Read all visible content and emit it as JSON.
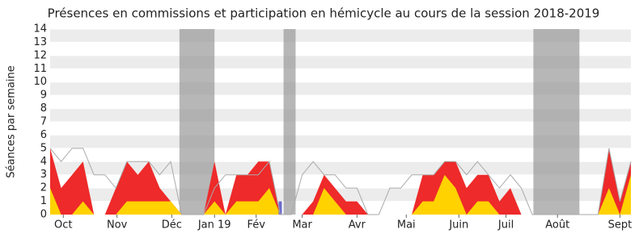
{
  "chart_data": {
    "type": "area",
    "title": "Présences en commissions et participation en hémicycle au cours de la session 2018-2019",
    "ylabel": "Séances par semaine",
    "x": [
      0,
      1,
      2,
      3,
      4,
      5,
      6,
      7,
      8,
      9,
      10,
      11,
      12,
      13,
      14,
      15,
      16,
      17,
      18,
      19,
      20,
      21,
      22,
      23,
      24,
      25,
      26,
      27,
      28,
      29,
      30,
      31,
      32,
      33,
      34,
      35,
      36,
      37,
      38,
      39,
      40,
      41,
      42,
      43,
      44,
      45,
      46,
      47,
      48,
      49,
      50,
      51,
      52,
      53
    ],
    "series": [
      {
        "style": "area",
        "color": "#ee2a2a",
        "values": [
          5,
          2,
          3,
          4,
          0,
          0,
          2,
          4,
          3,
          4,
          2,
          1,
          0,
          0,
          0,
          4,
          0,
          3,
          3,
          4,
          4,
          0,
          0,
          0,
          1,
          3,
          2,
          1,
          1,
          0,
          0,
          0,
          0,
          0,
          3,
          3,
          4,
          4,
          2,
          3,
          3,
          1,
          2,
          0,
          0,
          0,
          0,
          0,
          0,
          0,
          0,
          5,
          1,
          4
        ]
      },
      {
        "style": "area",
        "color": "#ffd200",
        "values": [
          2,
          0,
          0,
          1,
          0,
          0,
          0,
          1,
          1,
          1,
          1,
          1,
          0,
          0,
          0,
          1,
          0,
          1,
          1,
          1,
          2,
          0,
          0,
          0,
          0,
          2,
          1,
          0,
          0,
          0,
          0,
          0,
          0,
          0,
          1,
          1,
          3,
          2,
          0,
          1,
          1,
          0,
          0,
          0,
          0,
          0,
          0,
          0,
          0,
          0,
          0,
          2,
          0,
          3
        ]
      },
      {
        "style": "line",
        "color": "#aaaaaa",
        "values": [
          5,
          4,
          5,
          5,
          3,
          3,
          2,
          4,
          4,
          4,
          3,
          4,
          0,
          0,
          0,
          2,
          3,
          3,
          3,
          3,
          4,
          0,
          0,
          3,
          4,
          3,
          3,
          2,
          2,
          0,
          0,
          2,
          2,
          3,
          3,
          3,
          4,
          4,
          3,
          4,
          3,
          2,
          3,
          2,
          0,
          0,
          0,
          0,
          0,
          0,
          0,
          5,
          1,
          4
        ]
      },
      {
        "style": "bar",
        "color": "#6a6acc",
        "values": [
          0,
          0,
          0,
          0,
          0,
          0,
          0,
          0,
          0,
          0,
          0,
          0,
          0,
          0,
          0,
          0,
          0,
          0,
          0,
          0,
          0,
          1,
          0,
          0,
          0,
          0,
          0,
          0,
          0,
          0,
          0,
          0,
          0,
          0,
          0,
          0,
          0,
          0,
          0,
          0,
          0,
          0,
          0,
          0,
          0,
          0,
          0,
          0,
          0,
          0,
          0,
          0,
          0,
          0
        ]
      }
    ],
    "vacations": [
      [
        11.8,
        15.0
      ],
      [
        21.3,
        22.4
      ],
      [
        44.1,
        48.3
      ]
    ],
    "xlim": [
      0,
      53
    ],
    "xticks": [
      {
        "value": 1.2,
        "label": "Oct"
      },
      {
        "value": 6.1,
        "label": "Nov"
      },
      {
        "value": 11.1,
        "label": "Déc"
      },
      {
        "value": 15.0,
        "label": "Jan 19"
      },
      {
        "value": 18.8,
        "label": "Fév"
      },
      {
        "value": 23.0,
        "label": "Mar"
      },
      {
        "value": 28.0,
        "label": "Avr"
      },
      {
        "value": 32.5,
        "label": "Mai"
      },
      {
        "value": 37.3,
        "label": "Juin"
      },
      {
        "value": 41.6,
        "label": "Juil"
      },
      {
        "value": 46.3,
        "label": "Août"
      },
      {
        "value": 52.0,
        "label": "Sept"
      }
    ],
    "ylim": [
      0,
      14
    ],
    "yticks": [
      0,
      1,
      2,
      3,
      4,
      5,
      6,
      7,
      8,
      9,
      10,
      11,
      12,
      13,
      14
    ],
    "grid": true
  }
}
